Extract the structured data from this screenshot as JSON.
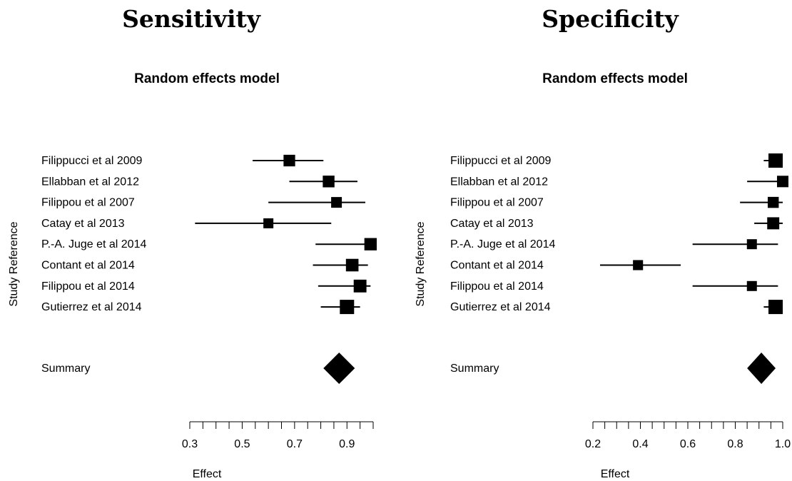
{
  "chart_data": [
    {
      "type": "forest",
      "title": "Sensitivity",
      "subtitle": "Random effects model",
      "xlabel": "Effect",
      "ylabel": "Study Reference",
      "xlim": [
        0.3,
        1.0
      ],
      "xticks": [
        "0.3",
        "0.5",
        "0.7",
        "0.9"
      ],
      "xtick_values": [
        0.3,
        0.5,
        0.7,
        0.9
      ],
      "studies": [
        {
          "label": "Filippucci et al 2009",
          "effect": 0.68,
          "lower": 0.54,
          "upper": 0.81
        },
        {
          "label": "Ellabban et al 2012",
          "effect": 0.83,
          "lower": 0.68,
          "upper": 0.94
        },
        {
          "label": "Filippou et al 2007",
          "effect": 0.86,
          "lower": 0.6,
          "upper": 0.97
        },
        {
          "label": "Catay et al 2013",
          "effect": 0.6,
          "lower": 0.32,
          "upper": 0.84
        },
        {
          "label": "P.-A. Juge et al 2014",
          "effect": 0.99,
          "lower": 0.78,
          "upper": 1.0
        },
        {
          "label": "Contant et al 2014",
          "effect": 0.92,
          "lower": 0.77,
          "upper": 0.98
        },
        {
          "label": "Filippou et al 2014",
          "effect": 0.95,
          "lower": 0.79,
          "upper": 0.99
        },
        {
          "label": "Gutierrez et al 2014",
          "effect": 0.9,
          "lower": 0.8,
          "upper": 0.95
        }
      ],
      "summary": {
        "label": "Summary",
        "effect": 0.87,
        "lower": 0.81,
        "upper": 0.93
      }
    },
    {
      "type": "forest",
      "title": "Specificity",
      "subtitle": "Random effects model",
      "xlabel": "Effect",
      "ylabel": "Study Reference",
      "xlim": [
        0.2,
        1.0
      ],
      "xticks": [
        "0.2",
        "0.4",
        "0.6",
        "0.8",
        "1.0"
      ],
      "xtick_values": [
        0.2,
        0.4,
        0.6,
        0.8,
        1.0
      ],
      "studies": [
        {
          "label": "Filippucci et al 2009",
          "effect": 0.97,
          "lower": 0.92,
          "upper": 0.99
        },
        {
          "label": "Ellabban et al 2012",
          "effect": 1.0,
          "lower": 0.85,
          "upper": 1.0
        },
        {
          "label": "Filippou et al 2007",
          "effect": 0.96,
          "lower": 0.82,
          "upper": 1.0
        },
        {
          "label": "Catay et al 2013",
          "effect": 0.96,
          "lower": 0.88,
          "upper": 1.0
        },
        {
          "label": "P.-A. Juge et al 2014",
          "effect": 0.87,
          "lower": 0.62,
          "upper": 0.98
        },
        {
          "label": "Contant et al 2014",
          "effect": 0.39,
          "lower": 0.23,
          "upper": 0.57
        },
        {
          "label": "Filippou et al 2014",
          "effect": 0.87,
          "lower": 0.62,
          "upper": 0.98
        },
        {
          "label": "Gutierrez et al 2014",
          "effect": 0.97,
          "lower": 0.92,
          "upper": 0.99
        }
      ],
      "summary": {
        "label": "Summary",
        "effect": 0.91,
        "lower": 0.85,
        "upper": 0.97
      }
    }
  ]
}
